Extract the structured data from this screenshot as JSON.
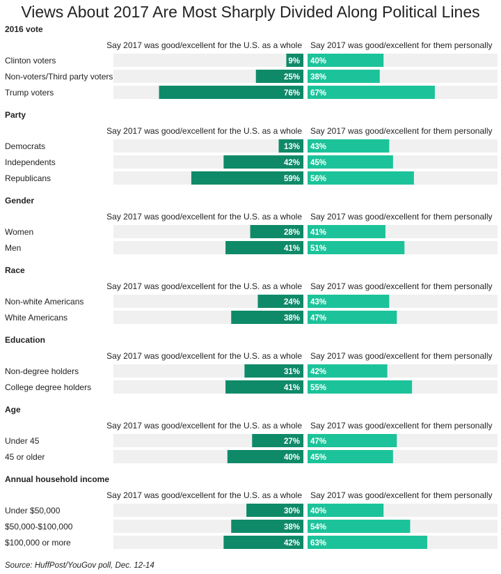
{
  "title": "Views About 2017 Are Most Sharply Divided Along Political Lines",
  "source": "Source: HuffPost/YouGov poll, Dec. 12-14",
  "colors": {
    "left_bar": "#0f8a68",
    "right_bar": "#1cc39a",
    "track": "#f0f0f0",
    "text": "#222222"
  },
  "chart_data": {
    "type": "bar",
    "column_headers": {
      "left": "Say 2017 was good/excellent for the U.S. as a whole",
      "right": "Say 2017 was good/excellent for them personally"
    },
    "xlim": [
      0,
      100
    ],
    "groups": [
      {
        "name": "2016 vote",
        "categories": [
          "Clinton voters",
          "Non-voters/Third party voters",
          "Trump voters"
        ],
        "left_values": [
          9,
          25,
          76
        ],
        "left_labels": [
          "9%",
          "25%",
          "76%"
        ],
        "right_values": [
          40,
          38,
          67
        ],
        "right_labels": [
          "40%",
          "38%",
          "67%"
        ]
      },
      {
        "name": "Party",
        "categories": [
          "Democrats",
          "Independents",
          "Republicans"
        ],
        "left_values": [
          13,
          42,
          59
        ],
        "left_labels": [
          "13%",
          "42%",
          "59%"
        ],
        "right_values": [
          43,
          45,
          56
        ],
        "right_labels": [
          "43%",
          "45%",
          "56%"
        ]
      },
      {
        "name": "Gender",
        "categories": [
          "Women",
          "Men"
        ],
        "left_values": [
          28,
          41
        ],
        "left_labels": [
          "28%",
          "41%"
        ],
        "right_values": [
          41,
          51
        ],
        "right_labels": [
          "41%",
          "51%"
        ]
      },
      {
        "name": "Race",
        "categories": [
          "Non-white Americans",
          "White Americans"
        ],
        "left_values": [
          24,
          38
        ],
        "left_labels": [
          "24%",
          "38%"
        ],
        "right_values": [
          43,
          47
        ],
        "right_labels": [
          "43%",
          "47%"
        ]
      },
      {
        "name": "Education",
        "categories": [
          "Non-degree holders",
          "College degree holders"
        ],
        "left_values": [
          31,
          41
        ],
        "left_labels": [
          "31%",
          "41%"
        ],
        "right_values": [
          42,
          55
        ],
        "right_labels": [
          "42%",
          "55%"
        ]
      },
      {
        "name": "Age",
        "categories": [
          "Under 45",
          "45 or older"
        ],
        "left_values": [
          27,
          40
        ],
        "left_labels": [
          "27%",
          "40%"
        ],
        "right_values": [
          47,
          45
        ],
        "right_labels": [
          "47%",
          "45%"
        ]
      },
      {
        "name": "Annual household income",
        "categories": [
          "Under $50,000",
          "$50,000-$100,000",
          "$100,000 or more"
        ],
        "left_values": [
          30,
          38,
          42
        ],
        "left_labels": [
          "30%",
          "38%",
          "42%"
        ],
        "right_values": [
          40,
          54,
          63
        ],
        "right_labels": [
          "40%",
          "54%",
          "63%"
        ]
      }
    ]
  }
}
